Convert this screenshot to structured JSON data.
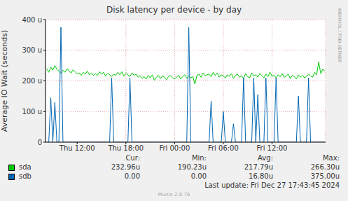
{
  "chart_data": {
    "type": "line",
    "title": "Disk latency per device - by day",
    "y_label": "Average IO Wait (seconds)",
    "x": [
      8.25,
      8.5,
      8.75,
      9,
      9.25,
      9.5,
      9.75,
      10,
      10.25,
      10.5,
      10.75,
      11,
      11.25,
      11.5,
      11.75,
      12,
      12.25,
      12.5,
      12.75,
      13,
      13.25,
      13.5,
      13.75,
      14,
      14.25,
      14.5,
      14.75,
      15,
      15.25,
      15.5,
      15.75,
      16,
      16.25,
      16.5,
      16.75,
      17,
      17.25,
      17.5,
      17.75,
      18,
      18.25,
      18.5,
      18.75,
      19,
      19.25,
      19.5,
      19.75,
      20,
      20.25,
      20.5,
      20.75,
      21,
      21.25,
      21.5,
      21.75,
      22,
      22.25,
      22.5,
      22.75,
      23,
      23.25,
      23.5,
      23.75,
      24,
      24.25,
      24.5,
      24.75,
      25,
      25.25,
      25.5,
      25.75,
      26,
      26.25,
      26.5,
      26.75,
      27,
      27.25,
      27.5,
      27.75,
      28,
      28.25,
      28.5,
      28.75,
      29,
      29.25,
      29.5,
      29.75,
      30,
      30.25,
      30.5,
      30.75,
      31,
      31.25,
      31.5,
      31.75,
      32,
      32.25,
      32.5,
      32.75,
      33,
      33.25,
      33.5,
      33.75,
      34,
      34.25,
      34.5,
      34.75,
      35,
      35.25,
      35.5,
      35.75,
      36,
      36.25,
      36.5,
      36.75,
      37,
      37.25,
      37.5,
      37.75,
      38,
      38.25,
      38.5,
      38.75,
      39,
      39.25,
      39.5,
      39.75,
      40,
      40.25,
      40.5,
      40.75,
      41,
      41.25,
      41.5,
      41.75,
      42,
      42.25,
      42.5
    ],
    "xlim": [
      8.1,
      42.6
    ],
    "xticks": [
      {
        "value": 12,
        "label": "Thu 12:00"
      },
      {
        "value": 18,
        "label": "Thu 18:00"
      },
      {
        "value": 24,
        "label": "Fri 00:00"
      },
      {
        "value": 30,
        "label": "Fri 06:00"
      },
      {
        "value": 36,
        "label": "Fri 12:00"
      }
    ],
    "ylim": [
      0,
      0.0004
    ],
    "yticks": [
      0,
      {
        "value": 0.0001,
        "label": "100 u"
      },
      {
        "value": 0.0002,
        "label": "200 u"
      },
      {
        "value": 0.0003,
        "label": "300 u"
      },
      {
        "value": 0.0004,
        "label": "400 u"
      }
    ],
    "grid": true,
    "legend": "bottom",
    "stats_columns": [
      "Cur:",
      "Min:",
      "Avg:",
      "Max:"
    ],
    "last_update": "Last update: Fri Dec 27 17:43:45 2024",
    "credit": "Munin 2.0.76",
    "watermark": "RRDTOOL / TOBI OETIKER",
    "series": [
      {
        "name": "sda",
        "color": "#00cc00",
        "stats": [
          "232.96u",
          "190.23u",
          "217.79u",
          "266.30u"
        ],
        "values": [
          0.00024,
          0.000228,
          0.000245,
          0.000235,
          0.00025,
          0.000238,
          0.000232,
          0.000225,
          0.000235,
          0.000228,
          0.00024,
          0.000232,
          0.000226,
          0.000236,
          0.00023,
          0.000222,
          0.000226,
          0.000218,
          0.000228,
          0.000222,
          0.000232,
          0.00022,
          0.000226,
          0.000218,
          0.000224,
          0.000218,
          0.00023,
          0.000222,
          0.000228,
          0.000216,
          0.000224,
          0.00022,
          0.000214,
          0.000222,
          0.000218,
          0.000228,
          0.00022,
          0.00023,
          0.000216,
          0.000224,
          0.00022,
          0.000214,
          0.000226,
          0.000218,
          0.000222,
          0.000212,
          0.000218,
          0.000208,
          0.000214,
          0.000206,
          0.000218,
          0.00021,
          0.00022,
          0.000202,
          0.000212,
          0.000218,
          0.000208,
          0.000216,
          0.000212,
          0.000204,
          0.000214,
          0.000218,
          0.00021,
          0.000206,
          0.000212,
          0.000218,
          0.000206,
          0.000214,
          0.00022,
          0.000208,
          0.000216,
          0.00021,
          0.000214,
          0.00019,
          0.000218,
          0.000222,
          0.000212,
          0.000226,
          0.000216,
          0.00022,
          0.000222,
          0.000214,
          0.000228,
          0.000218,
          0.000226,
          0.000212,
          0.00022,
          0.000216,
          0.00021,
          0.00022,
          0.000214,
          0.000224,
          0.000208,
          0.000218,
          0.000222,
          0.000212,
          0.000216,
          0.000208,
          0.000224,
          0.000214,
          0.00021,
          0.000226,
          0.000216,
          0.00022,
          0.000212,
          0.000224,
          0.000218,
          0.00021,
          0.000222,
          0.000214,
          0.000228,
          0.000216,
          0.000218,
          0.00021,
          0.00022,
          0.000214,
          0.000224,
          0.000212,
          0.000216,
          0.000222,
          0.000208,
          0.000218,
          0.000214,
          0.000206,
          0.00022,
          0.000212,
          0.000218,
          0.00021,
          0.000214,
          0.000222,
          0.000216,
          0.000212,
          0.000228,
          0.00022,
          0.000262,
          0.000224,
          0.000238,
          0.000233
        ]
      },
      {
        "name": "sdb",
        "color": "#0066b3",
        "stats": [
          "0.00",
          "0.00",
          "16.80u",
          "375.00u"
        ],
        "values": [
          0,
          0,
          0.000145,
          0,
          0.00013,
          0,
          0,
          0.000375,
          0,
          0,
          0,
          0,
          0,
          0,
          0,
          0,
          0,
          0,
          0,
          0,
          0,
          0,
          0,
          0,
          0,
          0,
          0,
          0,
          0,
          0,
          0,
          0,
          0.00021,
          0,
          0,
          0,
          0,
          0,
          0,
          0,
          0,
          0.00021,
          0,
          0,
          0,
          0,
          0,
          0,
          0,
          0,
          0,
          0,
          0,
          0,
          0,
          0,
          0,
          0,
          0,
          0,
          0,
          0,
          0,
          0,
          0,
          0,
          0,
          0,
          0,
          0,
          0.000375,
          0,
          0,
          0,
          0,
          0,
          0,
          0,
          0,
          0,
          0,
          0.000135,
          0,
          0,
          0,
          0,
          0,
          0.0001,
          0,
          0,
          0,
          0,
          6e-05,
          0,
          0,
          0,
          0,
          0.00021,
          0,
          0,
          0,
          0,
          0.00021,
          0,
          0.000155,
          0,
          0,
          0,
          0.00021,
          0,
          0,
          0,
          0,
          0.00021,
          0,
          0,
          0,
          0,
          0,
          0,
          0,
          0,
          0,
          0,
          0.00015,
          0,
          0,
          0,
          0,
          0.00021,
          0,
          0,
          0,
          0,
          0,
          0,
          0,
          0
        ]
      }
    ]
  }
}
